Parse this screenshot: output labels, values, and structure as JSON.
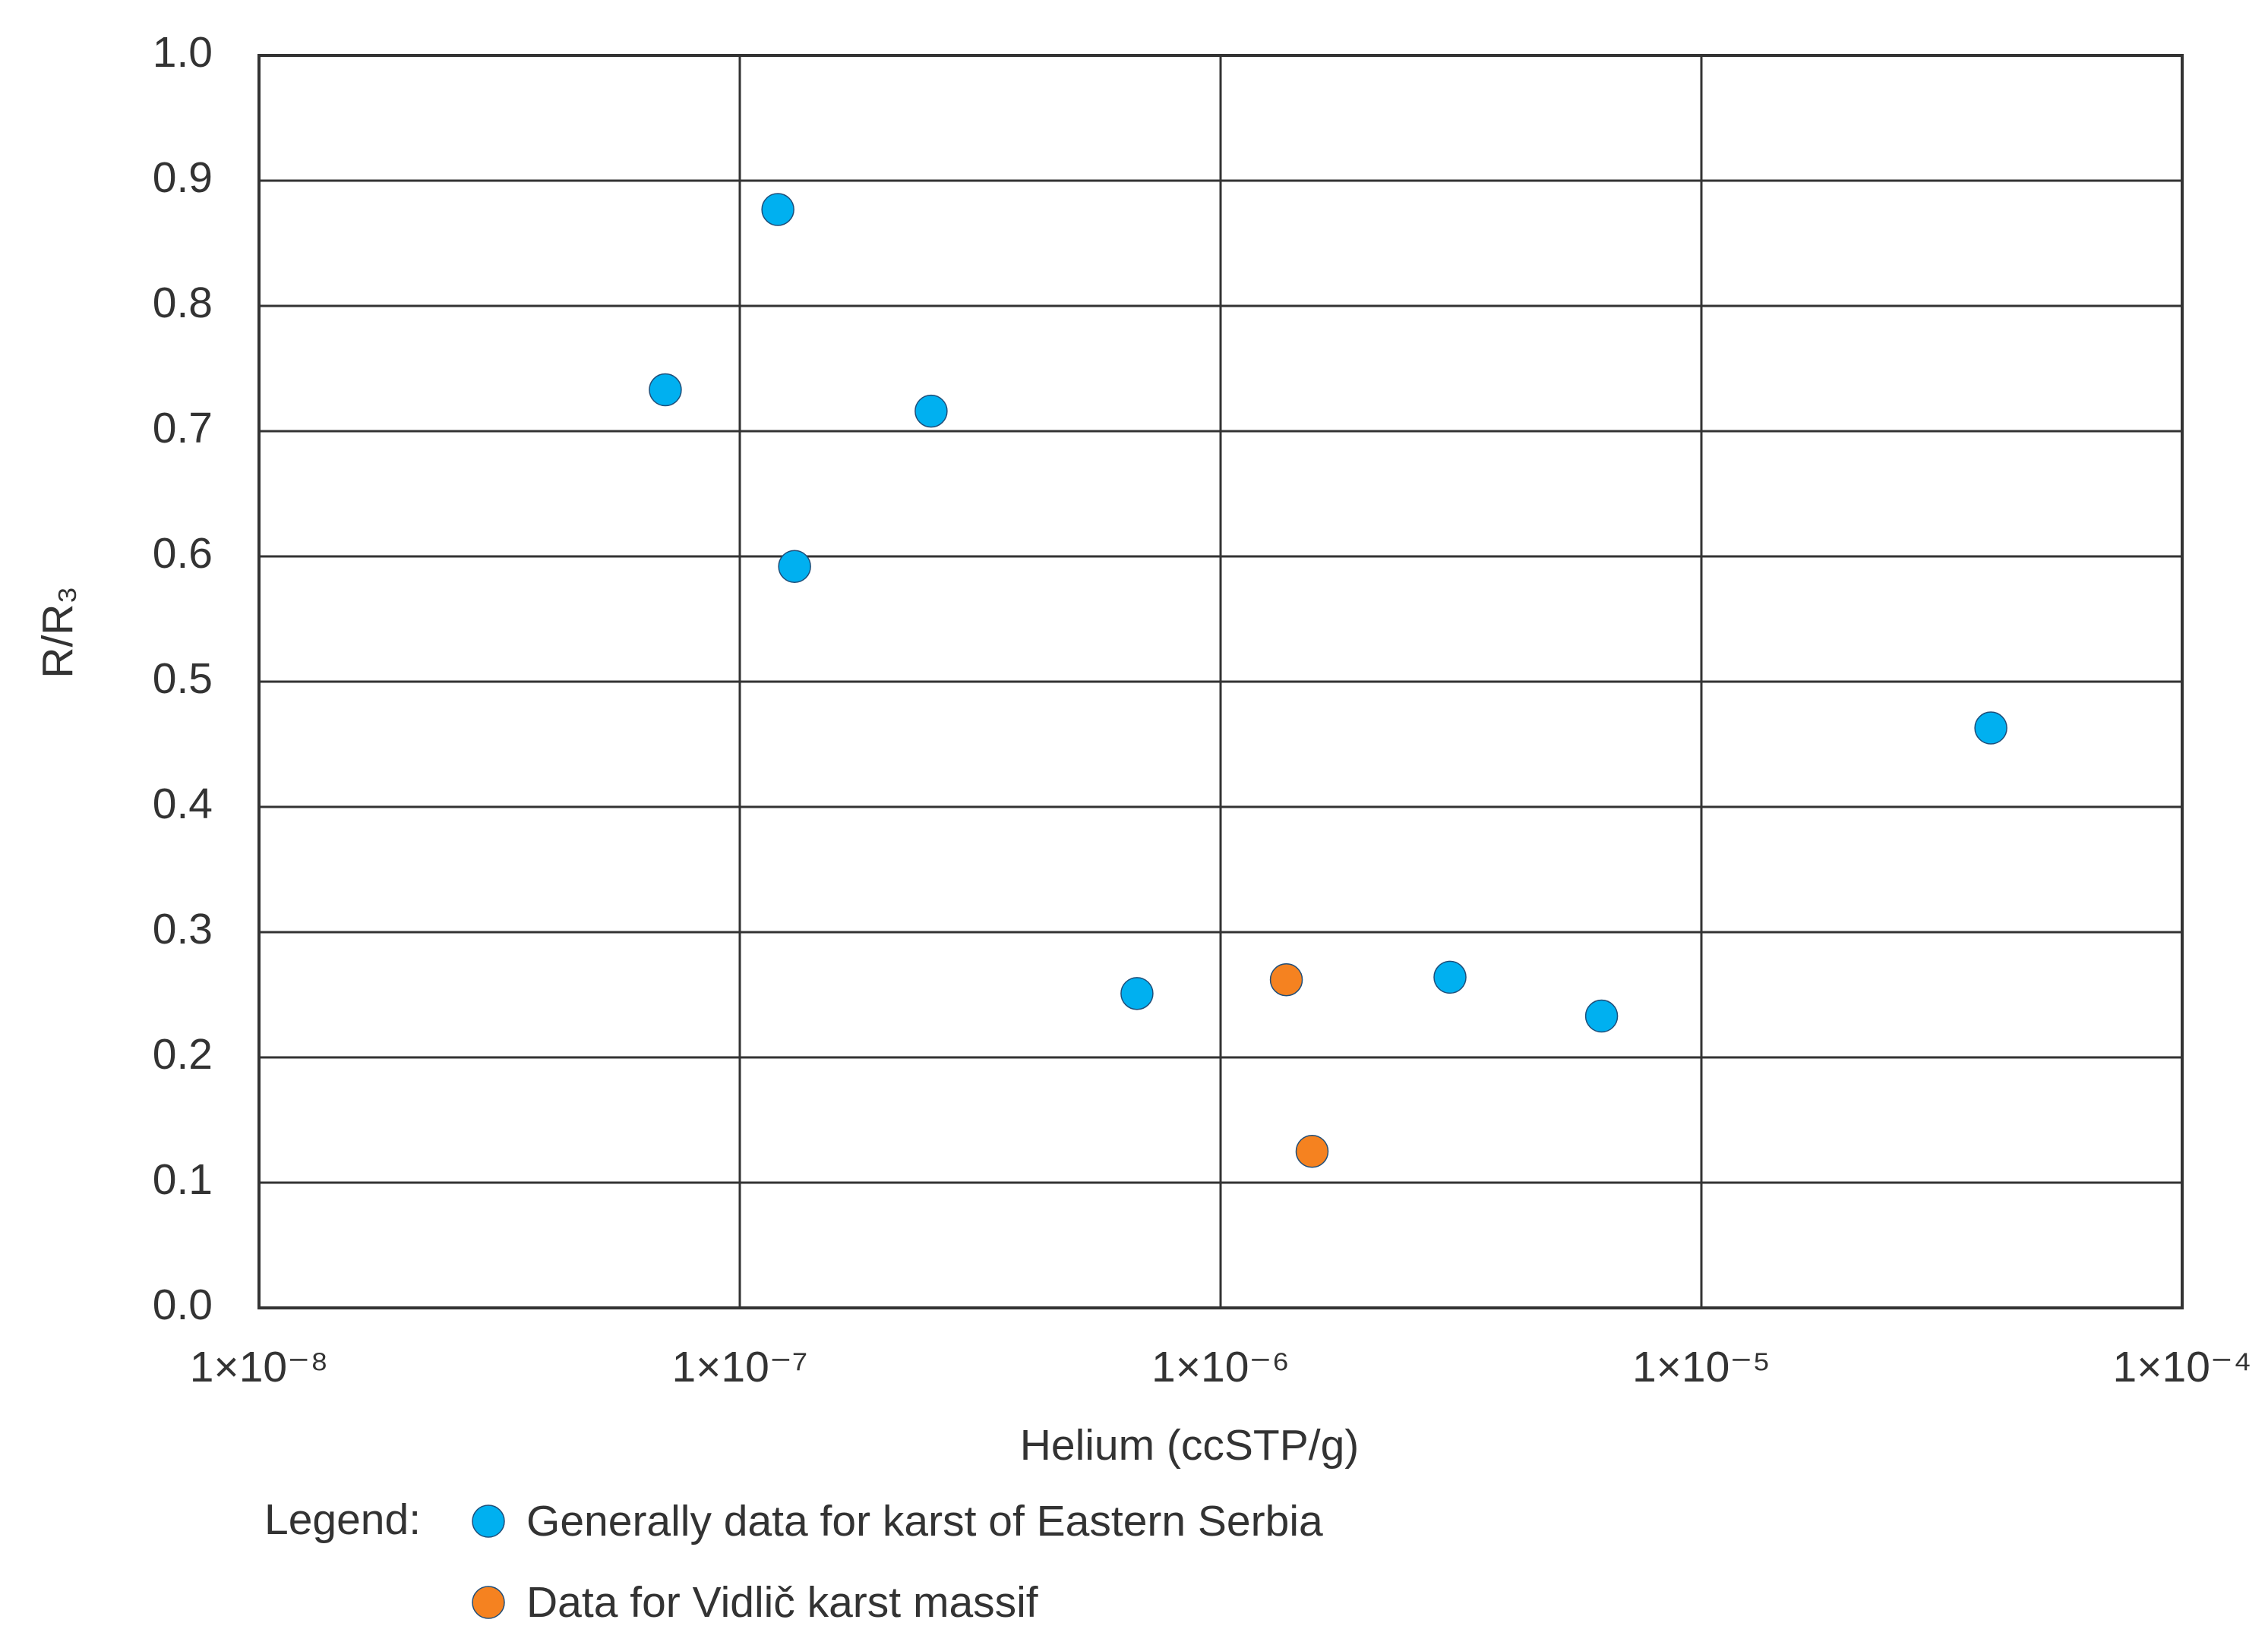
{
  "chart_data": {
    "type": "scatter",
    "x_label": "Helium (ccSTP/g)",
    "y_label": "R/R₃",
    "x_scale": "log",
    "xlim": [
      1e-08,
      0.0001
    ],
    "xticks": [
      {
        "value": 1e-08,
        "label": "1×10⁻⁸"
      },
      {
        "value": 1e-07,
        "label": "1×10⁻⁷"
      },
      {
        "value": 1e-06,
        "label": "1×10⁻⁶"
      },
      {
        "value": 1e-05,
        "label": "1×10⁻⁵"
      },
      {
        "value": 0.0001,
        "label": "1×10⁻⁴"
      }
    ],
    "ylim": [
      0,
      1
    ],
    "yticks": [
      {
        "value": 0,
        "label": "0.0"
      },
      0.1,
      0.2,
      0.3,
      0.4,
      0.5,
      0.6,
      0.7,
      0.8,
      0.9,
      {
        "value": 1,
        "label": "1.0"
      }
    ],
    "grid": true,
    "legend_title": "Legend:",
    "legend": "bottom",
    "series": [
      {
        "name": "Generally data for karst of Eastern Serbia",
        "color": "#00b0f0",
        "x": [
          7e-08,
          1.2e-07,
          2.5e-07,
          1.3e-07,
          4e-05,
          6.7e-07,
          3e-06,
          6.2e-06
        ],
        "values": [
          0.733,
          0.877,
          0.716,
          0.592,
          0.463,
          0.251,
          0.264,
          0.233
        ]
      },
      {
        "name": "Data for Vidlič karst massif",
        "color": "#f58220",
        "x": [
          1.37e-06,
          1.55e-06
        ],
        "values": [
          0.262,
          0.125
        ]
      }
    ]
  }
}
